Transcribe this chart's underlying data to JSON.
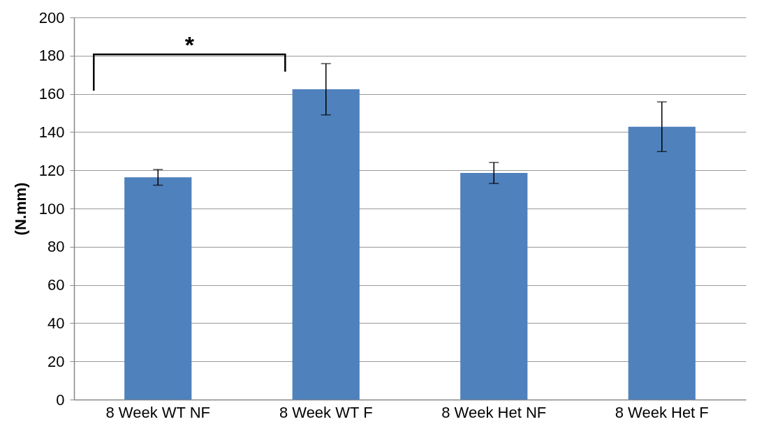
{
  "chart_data": {
    "type": "bar",
    "ylabel": "(N.mm)",
    "categories": [
      "8 Week WT NF",
      "8 Week WT F",
      "8 Week Het NF",
      "8 Week Het F"
    ],
    "values": [
      116.3,
      162.4,
      118.6,
      142.8
    ],
    "errors": [
      4.1,
      13.4,
      5.5,
      13
    ],
    "color": "#4f81bd",
    "ylim": [
      0,
      200
    ],
    "yticks": [
      0,
      20,
      40,
      60,
      80,
      100,
      120,
      140,
      160,
      180,
      200
    ],
    "grid": "y",
    "annotations": [
      "*"
    ]
  }
}
